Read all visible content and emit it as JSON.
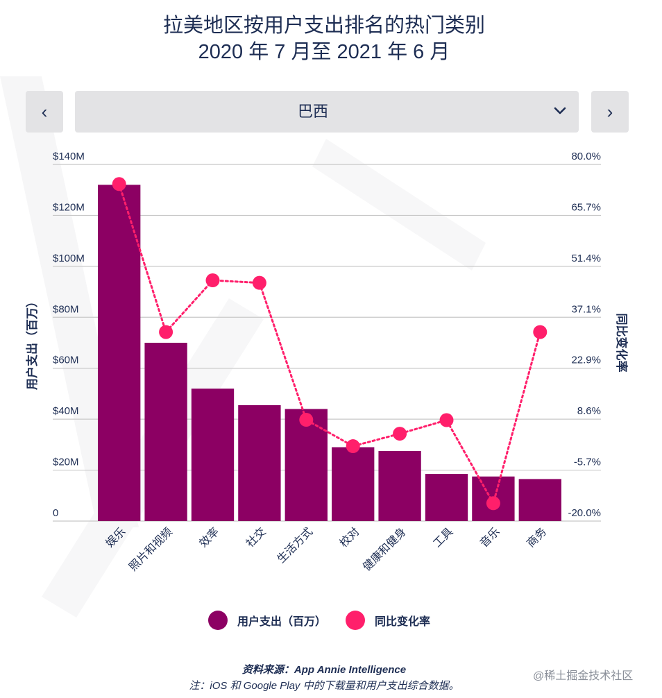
{
  "title": {
    "line1": "拉美地区按用户支出排名的热门类别",
    "line2": "2020 年 7 月至 2021 年 6 月"
  },
  "controls": {
    "prev_icon": "chevron-left-icon",
    "next_icon": "chevron-right-icon",
    "prev_glyph": "‹",
    "next_glyph": "›",
    "selected_country": "巴西",
    "dropdown_icon": "chevron-down-icon"
  },
  "colors": {
    "bar": "#8c0063",
    "line": "#ff1f6b",
    "grid": "#c8c8c8",
    "text": "#1d2d53"
  },
  "chart_data": {
    "type": "bar",
    "categories": [
      "娱乐",
      "照片和视频",
      "效率",
      "社交",
      "生活方式",
      "校对",
      "健康和健身",
      "工具",
      "音乐",
      "商务"
    ],
    "series": [
      {
        "name": "用户支出（百万）",
        "type": "bar",
        "axis": "left",
        "values": [
          132,
          70,
          52,
          45.5,
          44,
          29,
          27.5,
          18.5,
          17.5,
          16.5
        ]
      },
      {
        "name": "同比变化率",
        "type": "line",
        "axis": "right",
        "values": [
          74.5,
          33.0,
          47.5,
          46.8,
          8.4,
          1.0,
          4.5,
          8.3,
          -15.0,
          33.0
        ]
      }
    ],
    "left_axis": {
      "label": "用户支出（百万）",
      "ticks": [
        "0",
        "$20M",
        "$40M",
        "$60M",
        "$80M",
        "$100M",
        "$120M",
        "$140M"
      ],
      "range": [
        0,
        140
      ]
    },
    "right_axis": {
      "label": "同比变化率",
      "ticks": [
        "-20.0%",
        "-5.7%",
        "8.6%",
        "22.9%",
        "37.1%",
        "51.4%",
        "65.7%",
        "80.0%"
      ],
      "range": [
        -20,
        80
      ]
    },
    "grid": true,
    "legend_position": "bottom"
  },
  "legend": {
    "items": [
      {
        "label": "用户支出（百万）"
      },
      {
        "label": "同比变化率"
      }
    ]
  },
  "footer": {
    "source": "资料来源：App Annie Intelligence",
    "note": "注：iOS 和 Google Play 中的下载量和用户支出综合数据。"
  },
  "credit": "@稀土掘金技术社区"
}
